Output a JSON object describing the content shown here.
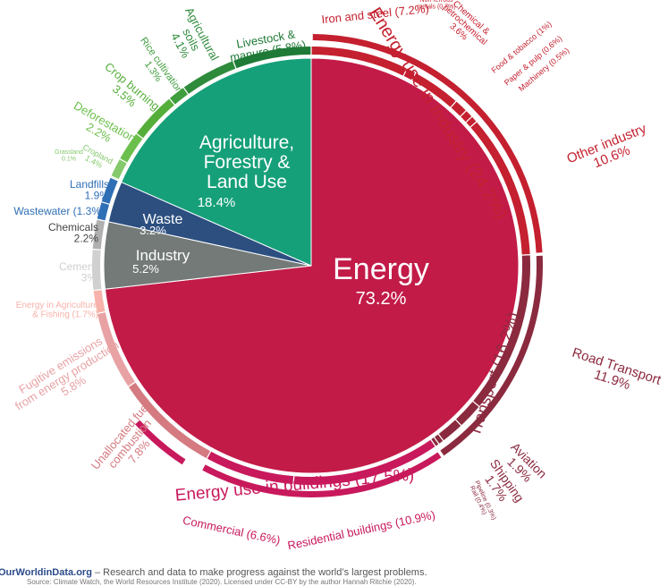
{
  "chart_data": {
    "type": "pie",
    "center_slices": [
      {
        "label": "Energy",
        "value": 73.2,
        "value_label": "73.2%",
        "color": "#c21b48"
      },
      {
        "label": "Industry",
        "value": 5.2,
        "value_label": "5.2%",
        "color": "#737a78"
      },
      {
        "label": "Waste",
        "value": 3.2,
        "value_label": "3.2%",
        "color": "#2c4f80"
      },
      {
        "label": "Agriculture, Forestry & Land Use",
        "value": 18.4,
        "value_label": "18.4%",
        "color": "#16a07a"
      }
    ],
    "outer_ring": [
      {
        "label": "Iron and steel (7.2%)",
        "value": 7.2,
        "color": "#c4202f"
      },
      {
        "label": "Non-ferrous metals (0.7%)",
        "value": 0.7,
        "color": "#c4202f"
      },
      {
        "label": "Chemical & petrochemical 3.6%",
        "value": 3.6,
        "color": "#c4202f"
      },
      {
        "label": "Food & tobacco (1%)",
        "value": 1.0,
        "color": "#c4202f"
      },
      {
        "label": "Paper & pulp (0.6%)",
        "value": 0.6,
        "color": "#c4202f"
      },
      {
        "label": "Machinery (0.5%)",
        "value": 0.5,
        "color": "#c4202f"
      },
      {
        "label": "Other industry 10.6%",
        "value": 10.6,
        "color": "#c4202f"
      },
      {
        "label": "Road Transport 11.9%",
        "value": 11.9,
        "color": "#8b2a3f"
      },
      {
        "label": "Aviation 1.9%",
        "value": 1.9,
        "color": "#8b2a3f"
      },
      {
        "label": "Shipping 1.7%",
        "value": 1.7,
        "color": "#8b2a3f"
      },
      {
        "label": "Rail (0.4%)",
        "value": 0.4,
        "color": "#8b2a3f"
      },
      {
        "label": "Pipeline (0.3%)",
        "value": 0.3,
        "color": "#8b2a3f"
      },
      {
        "label": "Residential buildings (10.9%)",
        "value": 10.9,
        "color": "#c8195c"
      },
      {
        "label": "Commercial (6.6%)",
        "value": 6.6,
        "color": "#c8195c"
      },
      {
        "label": "Unallocated fuel combustion 7.8%",
        "value": 7.8,
        "color": "#d47a80"
      },
      {
        "label": "Fugitive emissions from energy production 5.8%",
        "value": 5.8,
        "color": "#e8a2a4"
      },
      {
        "label": "Energy in Agriculture & Fishing (1.7%)",
        "value": 1.7,
        "color": "#f7b3ab"
      },
      {
        "label": "Cement 3%",
        "value": 3.0,
        "color": "#d0d0d0"
      },
      {
        "label": "Chemicals 2.2%",
        "value": 2.2,
        "color": "#b0b0b0"
      },
      {
        "label": "Wastewater (1.3%)",
        "value": 1.3,
        "color": "#2f6fb6"
      },
      {
        "label": "Landfills 1.9%",
        "value": 1.9,
        "color": "#2f6fb6"
      },
      {
        "label": "Grassland 0.1%",
        "value": 0.1,
        "color": "#85c96d"
      },
      {
        "label": "Cropland 1.4%",
        "value": 1.4,
        "color": "#85c96d"
      },
      {
        "label": "Deforestation 2.2%",
        "value": 2.2,
        "color": "#6bbf4c"
      },
      {
        "label": "Crop burning 3.5%",
        "value": 3.5,
        "color": "#55ae3a"
      },
      {
        "label": "Rice cultivation 1.3%",
        "value": 1.3,
        "color": "#3f9e3d"
      },
      {
        "label": "Agricultural soils 4.1%",
        "value": 4.1,
        "color": "#2f8b3c"
      },
      {
        "label": "Livestock & manure (5.8%)",
        "value": 5.8,
        "color": "#1f7a37"
      }
    ],
    "group_arcs": [
      {
        "label": "Energy use in Industry (24.2%)",
        "value": 24.2,
        "color": "#c4202f"
      },
      {
        "label": "Transport (16.2%)",
        "value": 16.2,
        "color": "#8b2a3f"
      },
      {
        "label": "Energy use in buildings (17.5%)",
        "value": 17.5,
        "color": "#c8195c"
      }
    ]
  },
  "footer": {
    "brand": "OurWorldinData.org",
    "text": " – Research and data to make progress against the world’s largest problems.",
    "source": "Source: Climate Watch, the World Resources Institute (2020). Licensed under CC-BY by the author Hannah Ritchie (2020)."
  }
}
